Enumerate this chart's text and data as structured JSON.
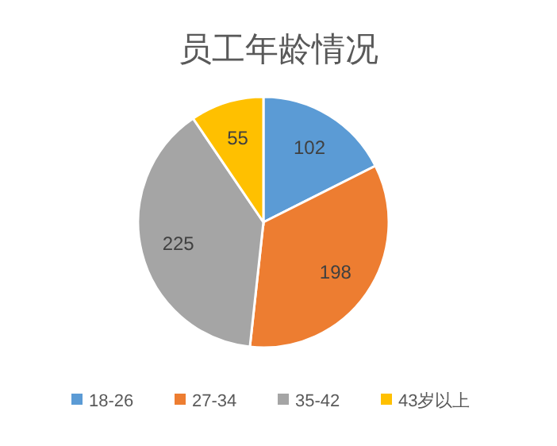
{
  "chart_data": {
    "type": "pie",
    "title": "员工年龄情况",
    "categories": [
      "18-26",
      "27-34",
      "35-42",
      "43岁以上"
    ],
    "values": [
      102,
      198,
      225,
      55
    ],
    "colors": [
      "#5b9bd5",
      "#ed7d31",
      "#a5a5a5",
      "#ffc000"
    ],
    "data_labels": true,
    "legend": "bottom"
  }
}
